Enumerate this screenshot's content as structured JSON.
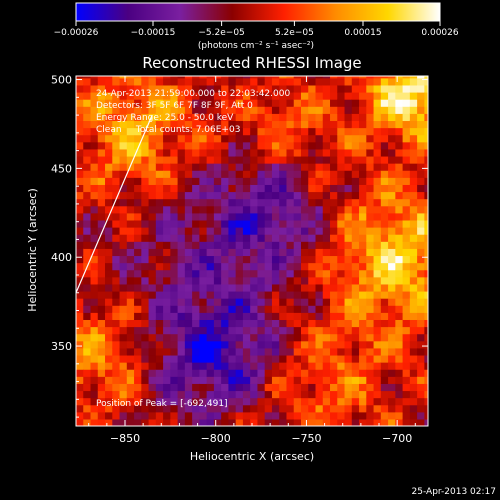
{
  "chart_data": {
    "type": "heatmap",
    "title": "Reconstructed RHESSI Image",
    "xlabel": "Heliocentric X (arcsec)",
    "ylabel": "Heliocentric Y (arcsec)",
    "xlim": [
      -877,
      -683
    ],
    "ylim": [
      305,
      502
    ],
    "x_ticks": [
      -850,
      -800,
      -750,
      -700
    ],
    "x_tick_labels": [
      "−850",
      "−800",
      "−750",
      "−700"
    ],
    "y_ticks": [
      350,
      400,
      450,
      500
    ],
    "y_tick_labels": [
      "350",
      "400",
      "450",
      "500"
    ],
    "colorbar": {
      "range": [
        -0.00026,
        0.00026
      ],
      "ticks": [
        -0.00026,
        -0.00015,
        -5.2e-05,
        5.2e-05,
        0.00015,
        0.00026
      ],
      "tick_labels": [
        "−0.00026",
        "−0.00015",
        "−5.2e−05",
        "5.2e−05",
        "0.00015",
        "0.00026"
      ],
      "unit_label": "(photons cm⁻² s⁻¹ asec⁻²)",
      "colormap": [
        "#0000ff",
        "#4b0082",
        "#7a1fa0",
        "#8b0000",
        "#ff2000",
        "#ff8c00",
        "#ffd700",
        "#ffffff"
      ]
    },
    "grid": false,
    "info_lines": [
      "24-Apr-2013 21:59:00.000 to 22:03:42.000",
      "Detectors: 3F 5F 6F 7F 8F 9F, Att 0",
      "Energy Range: 25.0 - 50.0 keV",
      "Clean     Total counts: 7.06E+03"
    ],
    "peak_label": "Position of Peak = [-692,491]",
    "peak_position": [
      -692,
      491
    ],
    "limb_line": [
      [
        -877,
        380
      ],
      [
        -835,
        480
      ]
    ],
    "timestamp": "25-Apr-2013 02:17"
  }
}
